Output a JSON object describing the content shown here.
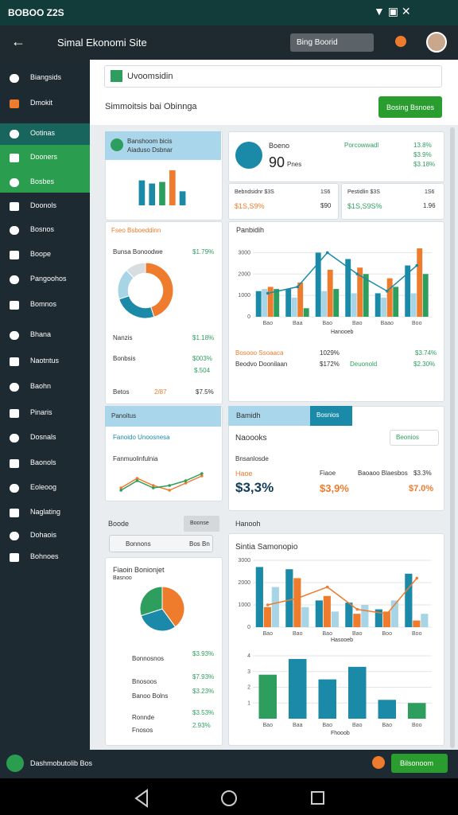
{
  "status_bar": {
    "time": "BOBOO Z2S"
  },
  "app_bar": {
    "title": "Simal Ekonomi Site",
    "search": "Bing Boorid"
  },
  "sidebar": {
    "items": [
      "Biangsids",
      "Dmokit",
      "Ootinas",
      "Dooners",
      "Bosbes",
      "Doonols",
      "Bosnos",
      "Boope",
      "Pangoohos",
      "Bomnos",
      "Bhana",
      "Naotntus",
      "Baohn",
      "Pinaris",
      "Dosnals",
      "Baonols",
      "Eoleoog",
      "Naglating",
      "Dohaois",
      "Bohnoes"
    ]
  },
  "header": {
    "search": "Uvoomsidin",
    "subtitle": "Simmoitsis bai Obinnga",
    "button": "Bosing Bsnoes"
  },
  "card_a": {
    "title": "Banshoom bicis",
    "subtitle": "Aiaduso Dsbnar"
  },
  "card_b": {
    "title": "Fseo Bsboeddinn",
    "label": "Bunsa Bonoodwe",
    "value": "$1.79%",
    "rows": [
      [
        "Nanzis",
        "$1.18%"
      ],
      [
        "Bonbsis",
        "$003%"
      ],
      [
        "",
        "$.504"
      ],
      [
        "Betos",
        "2/87",
        "$7.5%"
      ]
    ]
  },
  "card_c": {
    "name": "Boeno",
    "value": "90",
    "unit": "Pnes",
    "label": "Porcowwadl",
    "stats": [
      "13.8%",
      "$3.9%",
      "$3.18%"
    ]
  },
  "stat_cards": [
    [
      "Bebndsidnr $3S",
      "1S6",
      "$1S,S9%",
      "$90"
    ],
    [
      "Pestidlin $3S",
      "1S6",
      "$1S,S9S%",
      "1.96"
    ]
  ],
  "card_d": {
    "title": "Panbidih",
    "caption": "Hanooeb",
    "legend": [
      [
        "Bosooo Ssoaaca",
        "1029%",
        "$3.74%"
      ],
      [
        "Beodvo Doonilaan",
        "$172%",
        "Deuonold",
        "$2.30%"
      ]
    ]
  },
  "card_e": {
    "title": "Panoitus",
    "subtitle": "Fanoido Unoosnesa",
    "label": "Fanmuolinfulnia"
  },
  "card_f": {
    "tabs": [
      "Bamidh",
      "Bosnios"
    ],
    "title": "Naoooks",
    "search": "Beonios",
    "subtitle": "Bnsanlosde",
    "label": "Haoe",
    "big": "$3,3%",
    "mid": "$3,9%",
    "cells": [
      "Fiaoe",
      "Baoaoo Blaesbos",
      "$3.3%",
      "$7.0%"
    ]
  },
  "card_g": {
    "title": "Boode",
    "button": "Boonse",
    "input": "Bonnons",
    "input_hint": "Bos Bn",
    "chart_title": "Fiaoin Bonionjet",
    "chart_subtitle": "Basnoo",
    "rows": [
      [
        "Bonnosnos",
        "$3.93%"
      ],
      [
        "Bnosoos",
        "$7.93%"
      ],
      [
        "Banoo Bolns",
        "$3.23%"
      ],
      [
        "Ronnde",
        "$3.53%"
      ],
      [
        "Fnosos",
        "2.93%"
      ]
    ]
  },
  "card_h": {
    "title": "Hanooh",
    "chart_title": "Sintia Samonopio",
    "caption": "Hasooeb",
    "caption2": "Fhooob"
  },
  "bottom_bar": {
    "label": "Dashmobutolib Bos",
    "button": "Bilsonoom"
  },
  "charts": [
    {
      "type": "bar",
      "categories": [
        null,
        null,
        null,
        null,
        null
      ],
      "values": [
        32,
        28,
        30,
        45,
        18
      ],
      "colors": [
        "#1a8aa8",
        "#1a8aa8",
        "#2e9e5e",
        "#ef7b2d",
        "#1a8aa8"
      ],
      "ylim": [
        0,
        50
      ]
    },
    {
      "type": "donut",
      "values": [
        45,
        25,
        18,
        12
      ],
      "colors": [
        "#ef7b2d",
        "#1a8aa8",
        "#a8d5e6",
        "#d8dde0"
      ]
    },
    {
      "type": "combo",
      "categories": [
        "Bao",
        "Baa",
        "Bao",
        "Bao",
        "Baao",
        "Boo"
      ],
      "ylim": [
        0,
        3500
      ],
      "yticks": [
        0,
        1000,
        2000,
        3000
      ],
      "series": [
        {
          "name": "Bosooo",
          "kind": "bar",
          "color": "#1a8aa8",
          "values": [
            1200,
            1300,
            3000,
            2700,
            1100,
            2400
          ]
        },
        {
          "name": "Ssoaaca",
          "kind": "bar",
          "color": "#a8d5e6",
          "values": [
            1300,
            900,
            1200,
            1100,
            900,
            1100
          ]
        },
        {
          "name": "Beodvo",
          "kind": "bar",
          "color": "#ef7b2d",
          "values": [
            1400,
            1600,
            2200,
            2300,
            1800,
            3200
          ]
        },
        {
          "name": "Deuonold",
          "kind": "bar",
          "color": "#2e9e5e",
          "values": [
            1300,
            400,
            1300,
            2000,
            1400,
            2000
          ]
        },
        {
          "name": "Doonilaan",
          "kind": "line",
          "color": "#1a8aa8",
          "values": [
            1100,
            1400,
            3000,
            2000,
            1200,
            2400
          ]
        }
      ]
    },
    {
      "type": "line",
      "categories": [
        null,
        null,
        null,
        null,
        null,
        null
      ],
      "ylim": [
        0,
        10
      ],
      "series": [
        {
          "name": "Fanoido",
          "color": "#ef7b2d",
          "values": [
            3,
            7,
            4,
            2,
            5,
            8
          ]
        },
        {
          "name": "Unoosnesa",
          "color": "#2e9e5e",
          "values": [
            2,
            6,
            3,
            4,
            6,
            9
          ]
        }
      ]
    },
    {
      "type": "pie",
      "values": [
        40,
        30,
        30
      ],
      "colors": [
        "#ef7b2d",
        "#1a8aa8",
        "#2e9e5e"
      ]
    },
    {
      "type": "combo",
      "categories": [
        "Bao",
        "Bao",
        "Bao",
        "Bao",
        "Boo",
        "Boo"
      ],
      "ylim": [
        0,
        3000
      ],
      "yticks": [
        0,
        1000,
        2000,
        3000
      ],
      "series": [
        {
          "name": "Sintia",
          "kind": "bar",
          "color": "#1a8aa8",
          "values": [
            2700,
            2600,
            1200,
            1100,
            800,
            2400
          ]
        },
        {
          "name": "Samo",
          "kind": "bar",
          "color": "#ef7b2d",
          "values": [
            900,
            2200,
            1400,
            600,
            700,
            300
          ]
        },
        {
          "name": "Nopio",
          "kind": "bar",
          "color": "#a8d5e6",
          "values": [
            1800,
            900,
            700,
            1000,
            1200,
            600
          ]
        },
        {
          "name": "Hasoo",
          "kind": "line",
          "color": "#ef7b2d",
          "values": [
            1000,
            1300,
            1800,
            800,
            600,
            2200
          ]
        }
      ]
    },
    {
      "type": "bar",
      "categories": [
        "Bao",
        "Baa",
        "Bao",
        "Bao",
        "Bao",
        "Boo"
      ],
      "values": [
        2.8,
        3.8,
        2.5,
        3.3,
        1.2,
        1.0
      ],
      "colors": [
        "#2e9e5e",
        "#1a8aa8",
        "#1a8aa8",
        "#1a8aa8",
        "#1a8aa8",
        "#2e9e5e"
      ],
      "ylim": [
        0,
        4
      ],
      "yticks": [
        1,
        2,
        3,
        4
      ]
    }
  ]
}
